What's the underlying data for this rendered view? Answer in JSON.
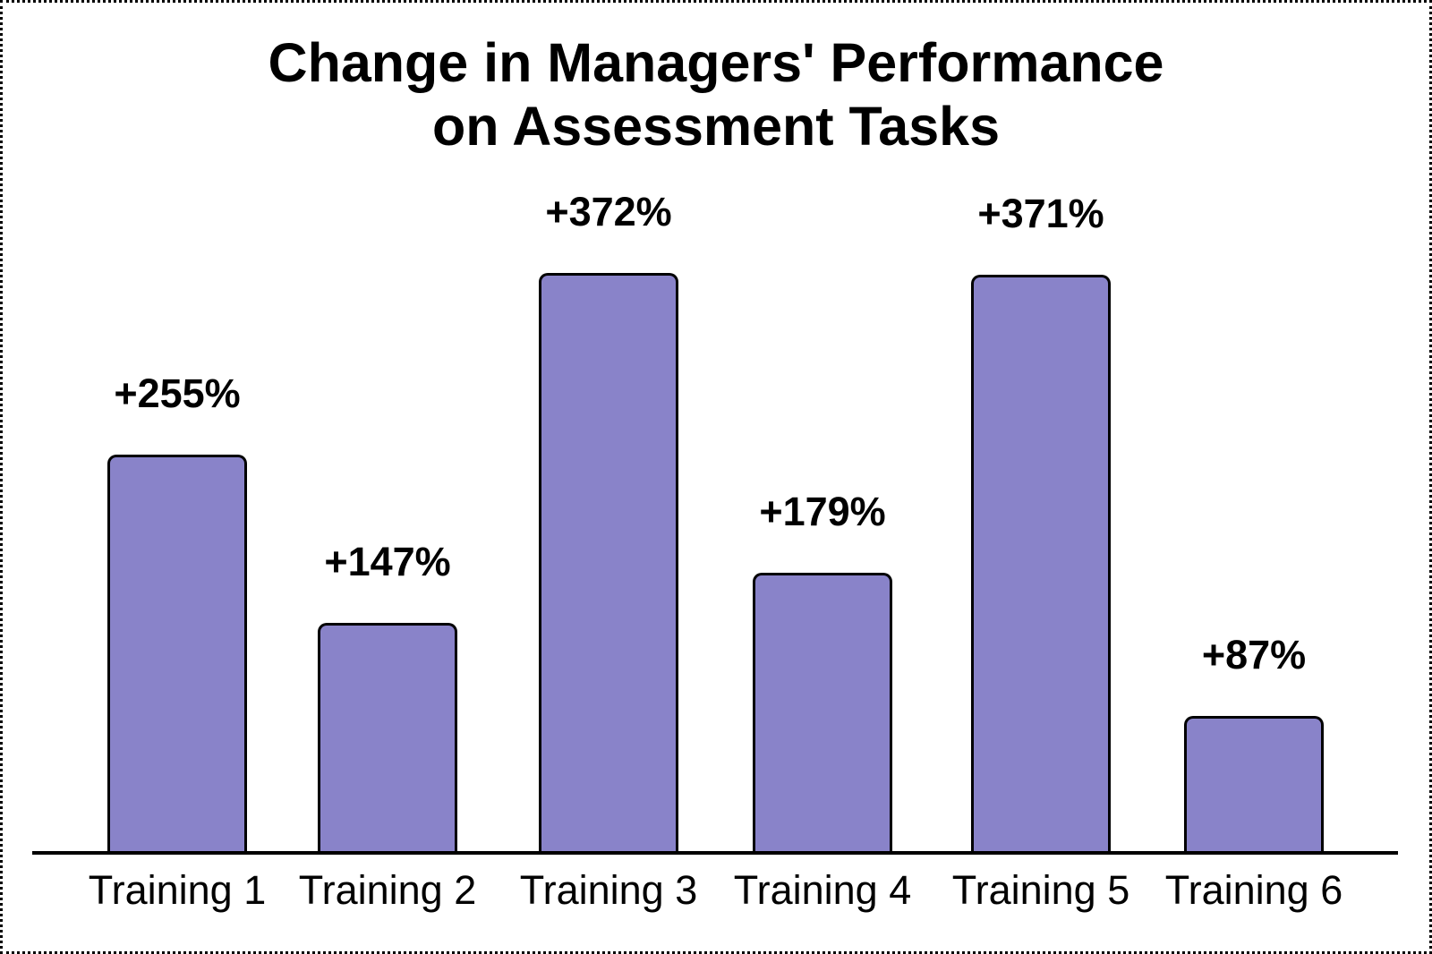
{
  "chart_data": {
    "type": "bar",
    "title": "Change in Managers' Performance on Assessment Tasks",
    "title_lines": [
      "Change in Managers' Performance",
      "on Assessment Tasks"
    ],
    "categories": [
      "Training 1",
      "Training 2",
      "Training 3",
      "Training 4",
      "Training 5",
      "Training 6"
    ],
    "values": [
      255,
      147,
      372,
      179,
      371,
      87
    ],
    "value_labels": [
      "+255%",
      "+147%",
      "+372%",
      "+179%",
      "+371%",
      "+87%"
    ],
    "xlabel": "",
    "ylabel": "",
    "ylim": [
      0,
      400
    ],
    "grid": false,
    "legend_position": "none",
    "bar_color": "#8983C9",
    "bar_border_color": "#000000",
    "axis_color": "#000000",
    "text_color": "#000000",
    "background_color": "#FFFFFF"
  }
}
